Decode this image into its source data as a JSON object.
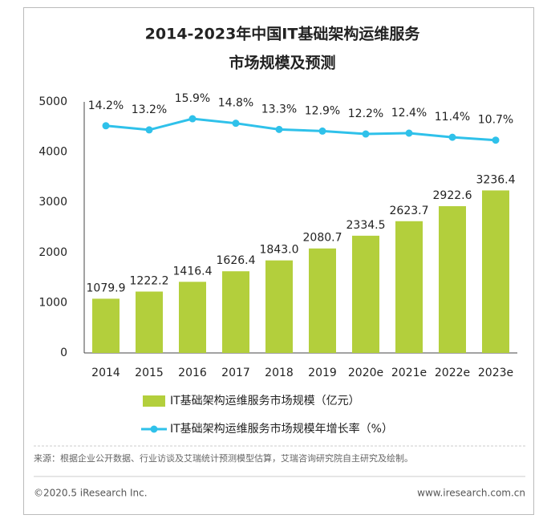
{
  "chart_data": {
    "type": "bar-line",
    "title": [
      "2014-2023年中国IT基础架构运维服务",
      "市场规模及预测"
    ],
    "categories": [
      "2014",
      "2015",
      "2016",
      "2017",
      "2018",
      "2019",
      "2020e",
      "2021e",
      "2022e",
      "2023e"
    ],
    "series": [
      {
        "name": "IT基础架构运维服务市场规模（亿元）",
        "type": "bar",
        "color": "#b3cf3c",
        "values": [
          1079.9,
          1222.2,
          1416.4,
          1626.4,
          1843.0,
          2080.7,
          2334.5,
          2623.7,
          2922.6,
          3236.4
        ],
        "value_labels": [
          "1079.9",
          "1222.2",
          "1416.4",
          "1626.4",
          "1843.0",
          "2080.7",
          "2334.5",
          "2623.7",
          "2922.6",
          "3236.4"
        ]
      },
      {
        "name": "IT基础架构运维服务市场规模年增长率（%）",
        "type": "line",
        "axis": "y2",
        "color": "#2fc1ea",
        "values": [
          14.2,
          13.2,
          15.9,
          14.8,
          13.3,
          12.9,
          12.2,
          12.4,
          11.4,
          10.7
        ],
        "value_labels": [
          "14.2%",
          "13.2%",
          "15.9%",
          "14.8%",
          "13.3%",
          "12.9%",
          "12.2%",
          "12.4%",
          "11.4%",
          "10.7%"
        ]
      }
    ],
    "ylim": [
      0,
      5000
    ],
    "yticks": [
      0,
      1000,
      2000,
      3000,
      4000,
      5000
    ],
    "y2lim": [
      -41,
      20
    ],
    "grid": false,
    "legend": "bottom"
  },
  "source": "来源：根据企业公开数据、行业访谈及艾瑞统计预测模型估算，艾瑞咨询研究院自主研究及绘制。",
  "footer": {
    "left": "©2020.5 iResearch Inc.",
    "right": "www.iresearch.com.cn"
  }
}
